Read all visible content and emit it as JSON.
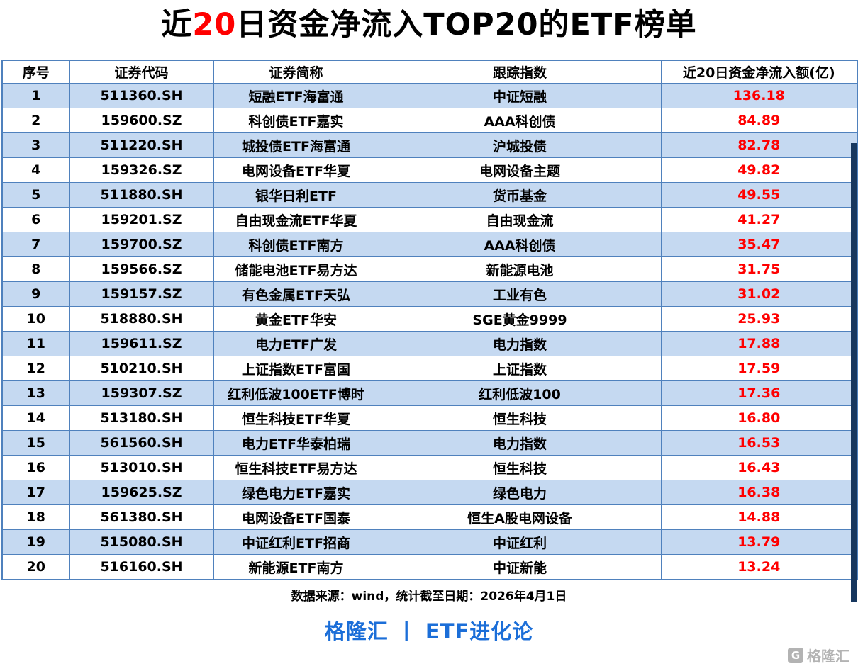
{
  "title": {
    "prefix": "近",
    "highlight": "20",
    "suffix": "日资金净流入TOP20的ETF榜单"
  },
  "chart_data": {
    "type": "table",
    "title": "近20日资金净流入TOP20的ETF榜单",
    "columns": [
      "序号",
      "证券代码",
      "证券简称",
      "跟踪指数",
      "近20日资金净流入额(亿)"
    ],
    "rows": [
      [
        "1",
        "511360.SH",
        "短融ETF海富通",
        "中证短融",
        "136.18"
      ],
      [
        "2",
        "159600.SZ",
        "科创债ETF嘉实",
        "AAA科创债",
        "84.89"
      ],
      [
        "3",
        "511220.SH",
        "城投债ETF海富通",
        "沪城投债",
        "82.78"
      ],
      [
        "4",
        "159326.SZ",
        "电网设备ETF华夏",
        "电网设备主题",
        "49.82"
      ],
      [
        "5",
        "511880.SH",
        "银华日利ETF",
        "货币基金",
        "49.55"
      ],
      [
        "6",
        "159201.SZ",
        "自由现金流ETF华夏",
        "自由现金流",
        "41.27"
      ],
      [
        "7",
        "159700.SZ",
        "科创债ETF南方",
        "AAA科创债",
        "35.47"
      ],
      [
        "8",
        "159566.SZ",
        "储能电池ETF易方达",
        "新能源电池",
        "31.75"
      ],
      [
        "9",
        "159157.SZ",
        "有色金属ETF天弘",
        "工业有色",
        "31.02"
      ],
      [
        "10",
        "518880.SH",
        "黄金ETF华安",
        "SGE黄金9999",
        "25.93"
      ],
      [
        "11",
        "159611.SZ",
        "电力ETF广发",
        "电力指数",
        "17.88"
      ],
      [
        "12",
        "510210.SH",
        "上证指数ETF富国",
        "上证指数",
        "17.59"
      ],
      [
        "13",
        "159307.SZ",
        "红利低波100ETF博时",
        "红利低波100",
        "17.36"
      ],
      [
        "14",
        "513180.SH",
        "恒生科技ETF华夏",
        "恒生科技",
        "16.80"
      ],
      [
        "15",
        "561560.SH",
        "电力ETF华泰柏瑞",
        "电力指数",
        "16.53"
      ],
      [
        "16",
        "513010.SH",
        "恒生科技ETF易方达",
        "恒生科技",
        "16.43"
      ],
      [
        "17",
        "159625.SZ",
        "绿色电力ETF嘉实",
        "绿色电力",
        "16.38"
      ],
      [
        "18",
        "561380.SH",
        "电网设备ETF国泰",
        "恒生A股电网设备",
        "14.88"
      ],
      [
        "19",
        "515080.SH",
        "中证红利ETF招商",
        "中证红利",
        "13.79"
      ],
      [
        "20",
        "516160.SH",
        "新能源ETF南方",
        "中证新能",
        "13.24"
      ]
    ]
  },
  "footer": {
    "source_note": "数据来源：wind，统计截至日期：2026年4月1日"
  },
  "branding": {
    "text": "格隆汇 丨 ETF进化论",
    "watermark_text": "格隆汇",
    "watermark_logo_letter": "G"
  },
  "colors": {
    "title_highlight": "#ff0000",
    "inflow_value": "#ff0000",
    "row_alt_background": "#c5d9f1",
    "table_border": "#4f81bd",
    "right_strip": "#17375e",
    "branding_blue": "#1b6ed8",
    "watermark_gray": "#b3b3b3"
  }
}
